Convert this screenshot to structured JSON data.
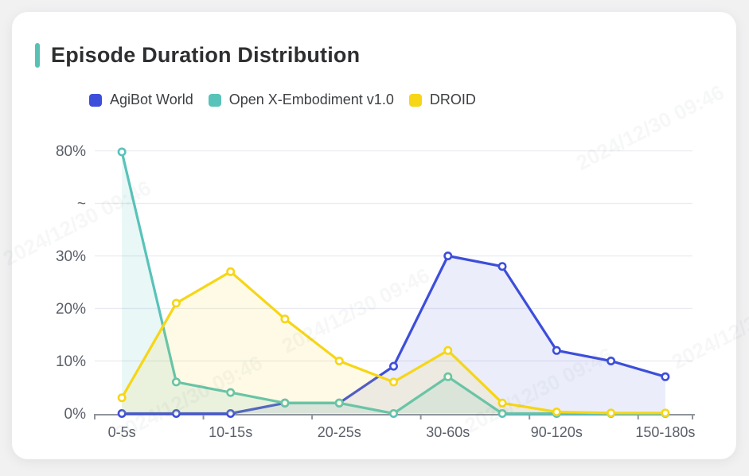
{
  "page": {
    "background": "#f1f1f2"
  },
  "card": {
    "title": "Episode Duration Distribution",
    "accent_color": "#5BC0B4",
    "watermark_text": "2024/12/30 09:46"
  },
  "chart_data": {
    "type": "line",
    "title": "Episode Duration Distribution",
    "categories": [
      "0-5s",
      "",
      "10-15s",
      "",
      "20-25s",
      "",
      "30-60s",
      "",
      "90-120s",
      "",
      "150-180s"
    ],
    "x_axis_visible_labels": [
      "0-5s",
      "10-15s",
      "20-25s",
      "30-60s",
      "90-120s",
      "150-180s"
    ],
    "y_axis": {
      "tick_labels": [
        "0%",
        "10%",
        "20%",
        "30%",
        "~",
        "80%"
      ],
      "broken_axis": true,
      "break_label": "~",
      "visible_range_low": [
        0,
        30
      ],
      "visible_top_value": 80,
      "unit": "percent"
    },
    "legend_position": "top",
    "grid": "horizontal-only",
    "series": [
      {
        "name": "AgiBot World",
        "color": "#3D4EDA",
        "area_fill": "rgba(61,78,218,0.10)",
        "values": [
          0,
          0,
          0,
          2,
          2,
          9,
          30,
          28,
          12,
          10,
          7
        ]
      },
      {
        "name": "Open X-Embodiment v1.0",
        "color": "#58C3B9",
        "area_fill": "rgba(88,195,185,0.13)",
        "values": [
          79.5,
          6,
          4,
          2,
          2,
          0,
          7,
          0,
          0,
          0,
          0
        ]
      },
      {
        "name": "DROID",
        "color": "#F6D616",
        "area_fill": "rgba(246,214,22,0.11)",
        "values": [
          3,
          21,
          27,
          18,
          10,
          6,
          12,
          2,
          0.3,
          0.1,
          0.1
        ]
      }
    ]
  }
}
